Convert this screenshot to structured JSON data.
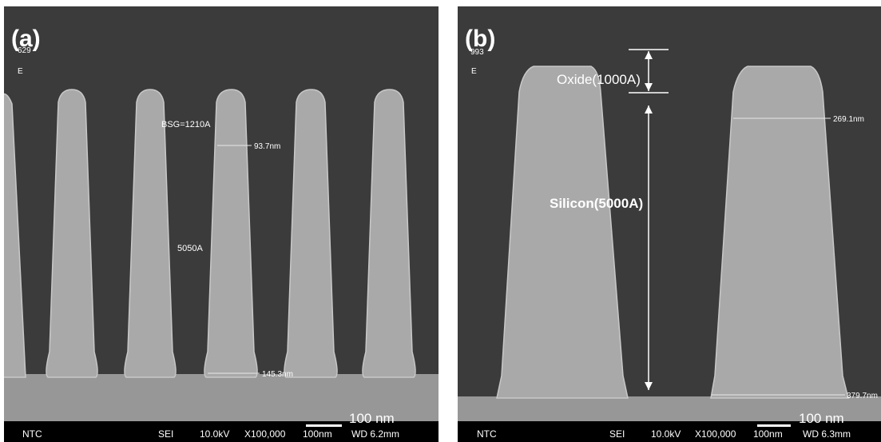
{
  "panels": [
    {
      "label": "(a)",
      "code": "629",
      "mark": "E",
      "annotations": [
        "BSG=1210A",
        "93.7nm",
        "5050A",
        "145.3nm"
      ],
      "scale_text": "100 nm",
      "footer": [
        "NTC",
        "SEI",
        "10.0kV",
        "X100,000",
        "100nm",
        "WD 6.2mm"
      ]
    },
    {
      "label": "(b)",
      "code": "993",
      "mark": "E",
      "annotations": [
        "Oxide(1000A)",
        "269.1nm",
        "Silicon(5000A)",
        "379.7nm"
      ],
      "scale_text": "100 nm",
      "footer": [
        "NTC",
        "SEI",
        "10.0kV",
        "X100,000",
        "100nm",
        "WD 6.3mm"
      ]
    }
  ]
}
